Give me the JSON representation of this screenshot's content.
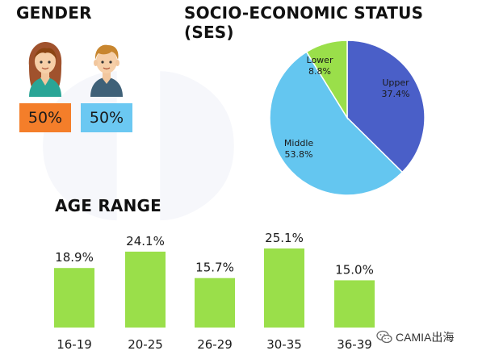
{
  "gender": {
    "title": "GENDER",
    "female": {
      "percent": "50%",
      "color": "#f47e2a",
      "icon": "female-person-icon"
    },
    "male": {
      "percent": "50%",
      "color": "#6bc8f2",
      "icon": "male-person-icon"
    }
  },
  "ses": {
    "title": "SOCIO-ECONOMIC STATUS (SES)"
  },
  "age": {
    "title": "AGE RANGE"
  },
  "watermark": {
    "brand": "CAMIA出海",
    "icon": "wechat-icon"
  },
  "chart_data": [
    {
      "type": "pie",
      "title": "SOCIO-ECONOMIC STATUS (SES)",
      "slices": [
        {
          "label": "Upper",
          "value": 37.4,
          "display": "37.4%",
          "color": "#4a5fc8"
        },
        {
          "label": "Middle",
          "value": 53.8,
          "display": "53.8%",
          "color": "#64c6f0"
        },
        {
          "label": "Lower",
          "value": 8.8,
          "display": "8.8%",
          "color": "#9adf4a"
        }
      ]
    },
    {
      "type": "bar",
      "title": "AGE RANGE",
      "categories": [
        "16-19",
        "20-25",
        "26-29",
        "30-35",
        "36-39"
      ],
      "values": [
        18.9,
        24.1,
        15.7,
        25.1,
        15.0
      ],
      "labels": [
        "18.9%",
        "24.1%",
        "15.7%",
        "25.1%",
        "15.0%"
      ],
      "color": "#9adf4a",
      "grid": false
    }
  ]
}
